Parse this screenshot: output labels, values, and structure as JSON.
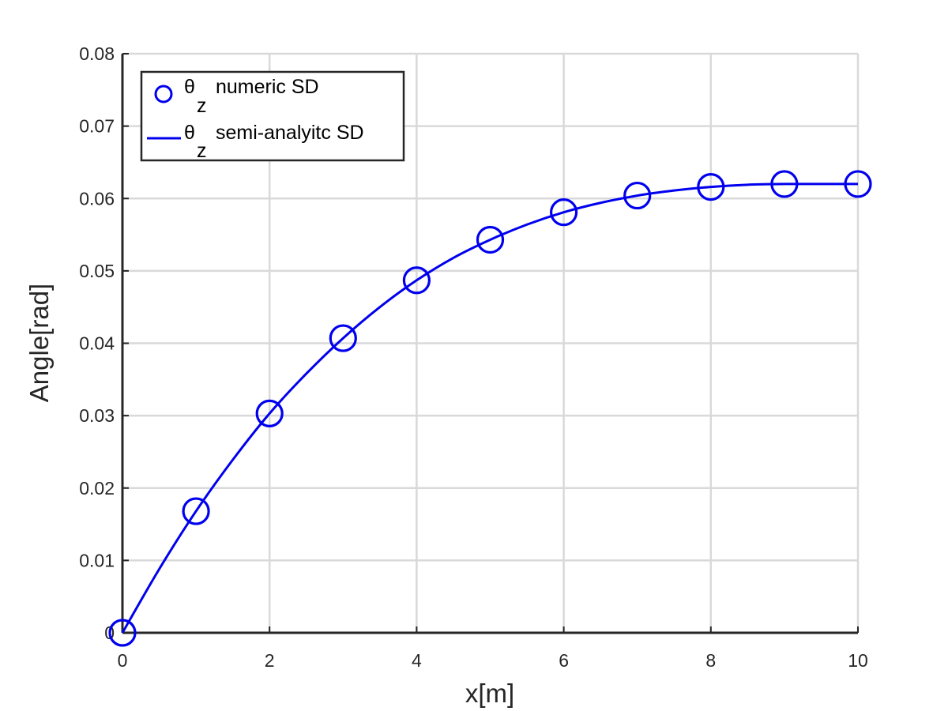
{
  "chart_data": {
    "type": "line",
    "xlabel": "x[m]",
    "ylabel": "Angle[rad]",
    "xlim": [
      0,
      10
    ],
    "ylim": [
      0,
      0.08
    ],
    "x_ticks": [
      "0",
      "2",
      "4",
      "6",
      "8",
      "10"
    ],
    "y_ticks": [
      "0",
      "0.01",
      "0.02",
      "0.03",
      "0.04",
      "0.05",
      "0.06",
      "0.07",
      "0.08"
    ],
    "grid": true,
    "legend_position": "top-left",
    "colors": {
      "series": "#0000ee",
      "axis": "#262626",
      "grid": "#d9d9d9"
    },
    "series": [
      {
        "name_symbol": "θ",
        "name_subscript": "z",
        "name_text": "numeric SD",
        "style": "markers",
        "marker": "circle",
        "x": [
          0,
          1,
          2,
          3,
          4,
          5,
          6,
          7,
          8,
          9,
          10
        ],
        "y": [
          0.0,
          0.0168,
          0.0303,
          0.0407,
          0.0487,
          0.0543,
          0.0581,
          0.0604,
          0.0616,
          0.062,
          0.062
        ]
      },
      {
        "name_symbol": "θ",
        "name_subscript": "z",
        "name_text": "semi-analyitc SD",
        "style": "line",
        "x": [
          0,
          0.5,
          1,
          1.5,
          2,
          2.5,
          3,
          3.5,
          4,
          4.5,
          5,
          5.5,
          6,
          6.5,
          7,
          7.5,
          8,
          8.5,
          9,
          9.5,
          10
        ],
        "y": [
          0.0,
          0.0088,
          0.0168,
          0.0239,
          0.0303,
          0.0358,
          0.0407,
          0.045,
          0.0487,
          0.0518,
          0.0543,
          0.0564,
          0.0581,
          0.0594,
          0.0604,
          0.0611,
          0.0616,
          0.0619,
          0.062,
          0.062,
          0.062
        ]
      }
    ]
  }
}
